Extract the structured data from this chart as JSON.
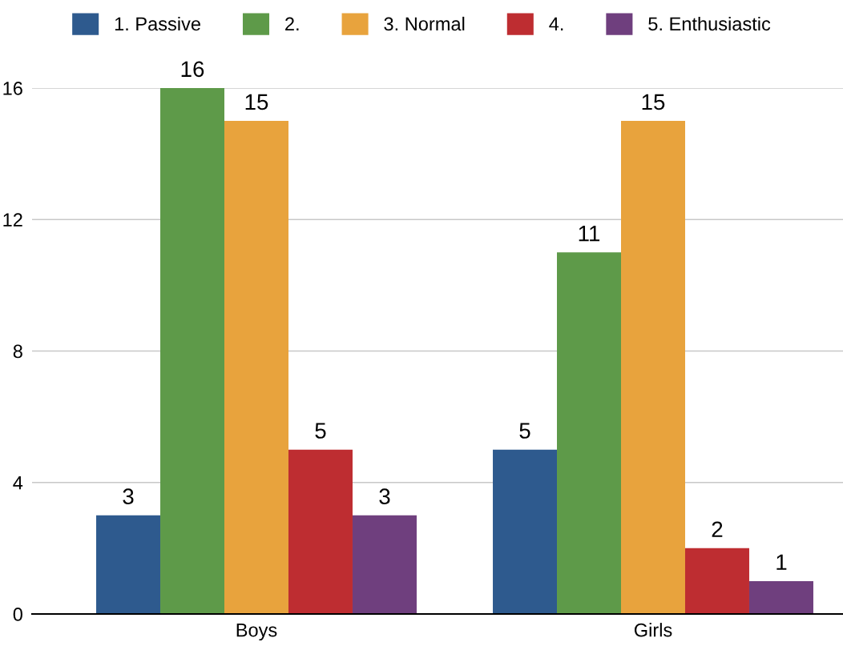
{
  "chart_data": {
    "type": "bar",
    "categories": [
      "Boys",
      "Girls"
    ],
    "series": [
      {
        "name": "1. Passive",
        "color": "#2e5a8e",
        "values": [
          3,
          5
        ]
      },
      {
        "name": "2.",
        "color": "#5e9a49",
        "values": [
          16,
          11
        ]
      },
      {
        "name": "3. Normal",
        "color": "#e8a33d",
        "values": [
          15,
          15
        ]
      },
      {
        "name": "4.",
        "color": "#be2d31",
        "values": [
          5,
          2
        ]
      },
      {
        "name": "5. Enthusiastic",
        "color": "#6f3f7e",
        "values": [
          3,
          1
        ]
      }
    ],
    "ylim": [
      0,
      16
    ],
    "yticks": [
      0,
      4,
      8,
      12,
      16
    ],
    "grid": "y",
    "legend": "top",
    "data_labels": true
  }
}
